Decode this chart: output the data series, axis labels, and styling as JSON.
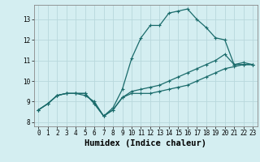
{
  "xlabel": "Humidex (Indice chaleur)",
  "background_color": "#d4eef1",
  "grid_color": "#b8d8dc",
  "line_color": "#1a6b6b",
  "xlim": [
    -0.5,
    23.5
  ],
  "ylim": [
    7.8,
    13.7
  ],
  "xticks": [
    0,
    1,
    2,
    3,
    4,
    5,
    6,
    7,
    8,
    9,
    10,
    11,
    12,
    13,
    14,
    15,
    16,
    17,
    18,
    19,
    20,
    21,
    22,
    23
  ],
  "yticks": [
    8,
    9,
    10,
    11,
    12,
    13
  ],
  "line1_x": [
    0,
    1,
    2,
    3,
    4,
    5,
    6,
    7,
    8,
    9,
    10,
    11,
    12,
    13,
    14,
    15,
    16,
    17,
    18,
    19,
    20,
    21,
    22,
    23
  ],
  "line1_y": [
    8.6,
    8.9,
    9.3,
    9.4,
    9.4,
    9.4,
    8.9,
    8.3,
    8.6,
    9.2,
    9.4,
    9.4,
    9.4,
    9.5,
    9.6,
    9.7,
    9.8,
    10.0,
    10.2,
    10.4,
    10.6,
    10.7,
    10.8,
    10.8
  ],
  "line2_x": [
    0,
    1,
    2,
    3,
    4,
    5,
    6,
    7,
    8,
    9,
    10,
    11,
    12,
    13,
    14,
    15,
    16,
    17,
    18,
    19,
    20,
    21,
    22,
    23
  ],
  "line2_y": [
    8.6,
    8.9,
    9.3,
    9.4,
    9.4,
    9.3,
    9.0,
    8.3,
    8.7,
    9.6,
    11.1,
    12.1,
    12.7,
    12.7,
    13.3,
    13.4,
    13.5,
    13.0,
    12.6,
    12.1,
    12.0,
    10.8,
    10.8,
    10.8
  ],
  "line3_x": [
    0,
    1,
    2,
    3,
    4,
    5,
    6,
    7,
    8,
    9,
    10,
    11,
    12,
    13,
    14,
    15,
    16,
    17,
    18,
    19,
    20,
    21,
    22,
    23
  ],
  "line3_y": [
    8.6,
    8.9,
    9.3,
    9.4,
    9.4,
    9.4,
    8.9,
    8.3,
    8.6,
    9.2,
    9.5,
    9.6,
    9.7,
    9.8,
    10.0,
    10.2,
    10.4,
    10.6,
    10.8,
    11.0,
    11.3,
    10.8,
    10.9,
    10.8
  ],
  "marker": "+",
  "markersize": 3,
  "linewidth": 0.9,
  "tick_fontsize": 5.5,
  "xlabel_fontsize": 7.5
}
